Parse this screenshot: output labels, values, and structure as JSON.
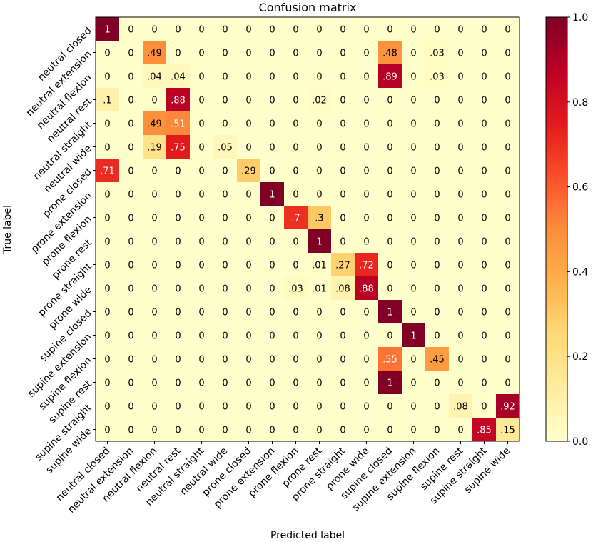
{
  "chart_data": {
    "type": "heatmap",
    "title": "Confusion matrix",
    "xlabel": "Predicted label",
    "ylabel": "True label",
    "labels": [
      "neutral closed",
      "neutral extension",
      "neutral flexion",
      "neutral rest",
      "neutral straight",
      "neutral wide",
      "prone closed",
      "prone extension",
      "prone flexion",
      "prone rest",
      "prone straight",
      "prone wide",
      "supine closed",
      "supine extension",
      "supine flexion",
      "supine rest",
      "supine straight",
      "supine wide"
    ],
    "cell_labels": [
      [
        "1",
        "0",
        "0",
        "0",
        "0",
        "0",
        "0",
        "0",
        "0",
        "0",
        "0",
        "0",
        "0",
        "0",
        "0",
        "0",
        "0",
        "0"
      ],
      [
        "0",
        "0",
        ".49",
        "0",
        "0",
        "0",
        "0",
        "0",
        "0",
        "0",
        "0",
        "0",
        ".48",
        "0",
        ".03",
        "0",
        "0",
        "0"
      ],
      [
        "0",
        "0",
        ".04",
        ".04",
        "0",
        "0",
        "0",
        "0",
        "0",
        "0",
        "0",
        "0",
        ".89",
        "0",
        ".03",
        "0",
        "0",
        "0"
      ],
      [
        ".1",
        "0",
        "0",
        ".88",
        "0",
        "0",
        "0",
        "0",
        "0",
        ".02",
        "0",
        "0",
        "0",
        "0",
        "0",
        "0",
        "0",
        "0"
      ],
      [
        "0",
        "0",
        ".49",
        ".51",
        "0",
        "0",
        "0",
        "0",
        "0",
        "0",
        "0",
        "0",
        "0",
        "0",
        "0",
        "0",
        "0",
        "0"
      ],
      [
        "0",
        "0",
        ".19",
        ".75",
        "0",
        ".05",
        "0",
        "0",
        "0",
        "0",
        "0",
        "0",
        "0",
        "0",
        "0",
        "0",
        "0",
        "0"
      ],
      [
        ".71",
        "0",
        "0",
        "0",
        "0",
        "0",
        ".29",
        "0",
        "0",
        "0",
        "0",
        "0",
        "0",
        "0",
        "0",
        "0",
        "0",
        "0"
      ],
      [
        "0",
        "0",
        "0",
        "0",
        "0",
        "0",
        "0",
        "1",
        "0",
        "0",
        "0",
        "0",
        "0",
        "0",
        "0",
        "0",
        "0",
        "0"
      ],
      [
        "0",
        "0",
        "0",
        "0",
        "0",
        "0",
        "0",
        "0",
        ".7",
        ".3",
        "0",
        "0",
        "0",
        "0",
        "0",
        "0",
        "0",
        "0"
      ],
      [
        "0",
        "0",
        "0",
        "0",
        "0",
        "0",
        "0",
        "0",
        "0",
        "1",
        "0",
        "0",
        "0",
        "0",
        "0",
        "0",
        "0",
        "0"
      ],
      [
        "0",
        "0",
        "0",
        "0",
        "0",
        "0",
        "0",
        "0",
        "0",
        ".01",
        ".27",
        ".72",
        "0",
        "0",
        "0",
        "0",
        "0",
        "0"
      ],
      [
        "0",
        "0",
        "0",
        "0",
        "0",
        "0",
        "0",
        "0",
        ".03",
        ".01",
        ".08",
        ".88",
        "0",
        "0",
        "0",
        "0",
        "0",
        "0"
      ],
      [
        "0",
        "0",
        "0",
        "0",
        "0",
        "0",
        "0",
        "0",
        "0",
        "0",
        "0",
        "0",
        "1",
        "0",
        "0",
        "0",
        "0",
        "0"
      ],
      [
        "0",
        "0",
        "0",
        "0",
        "0",
        "0",
        "0",
        "0",
        "0",
        "0",
        "0",
        "0",
        "0",
        "1",
        "0",
        "0",
        "0",
        "0"
      ],
      [
        "0",
        "0",
        "0",
        "0",
        "0",
        "0",
        "0",
        "0",
        "0",
        "0",
        "0",
        "0",
        ".55",
        "0",
        ".45",
        "0",
        "0",
        "0"
      ],
      [
        "0",
        "0",
        "0",
        "0",
        "0",
        "0",
        "0",
        "0",
        "0",
        "0",
        "0",
        "0",
        "1",
        "0",
        "0",
        "0",
        "0",
        "0"
      ],
      [
        "0",
        "0",
        "0",
        "0",
        "0",
        "0",
        "0",
        "0",
        "0",
        "0",
        "0",
        "0",
        "0",
        "0",
        "0",
        ".08",
        "0",
        ".92"
      ],
      [
        "0",
        "0",
        "0",
        "0",
        "0",
        "0",
        "0",
        "0",
        "0",
        "0",
        "0",
        "0",
        "0",
        "0",
        "0",
        "0",
        ".85",
        ".15"
      ]
    ],
    "colorbar": {
      "min": 0,
      "max": 1,
      "ticks": [
        "0.0",
        "0.2",
        "0.4",
        "0.6",
        "0.8",
        "1.0"
      ]
    },
    "colormap": [
      "#ffffcc",
      "#ffeda0",
      "#fed976",
      "#feb24c",
      "#fd8d3c",
      "#fc4e2a",
      "#e31a1c",
      "#bd0026",
      "#800026"
    ]
  }
}
